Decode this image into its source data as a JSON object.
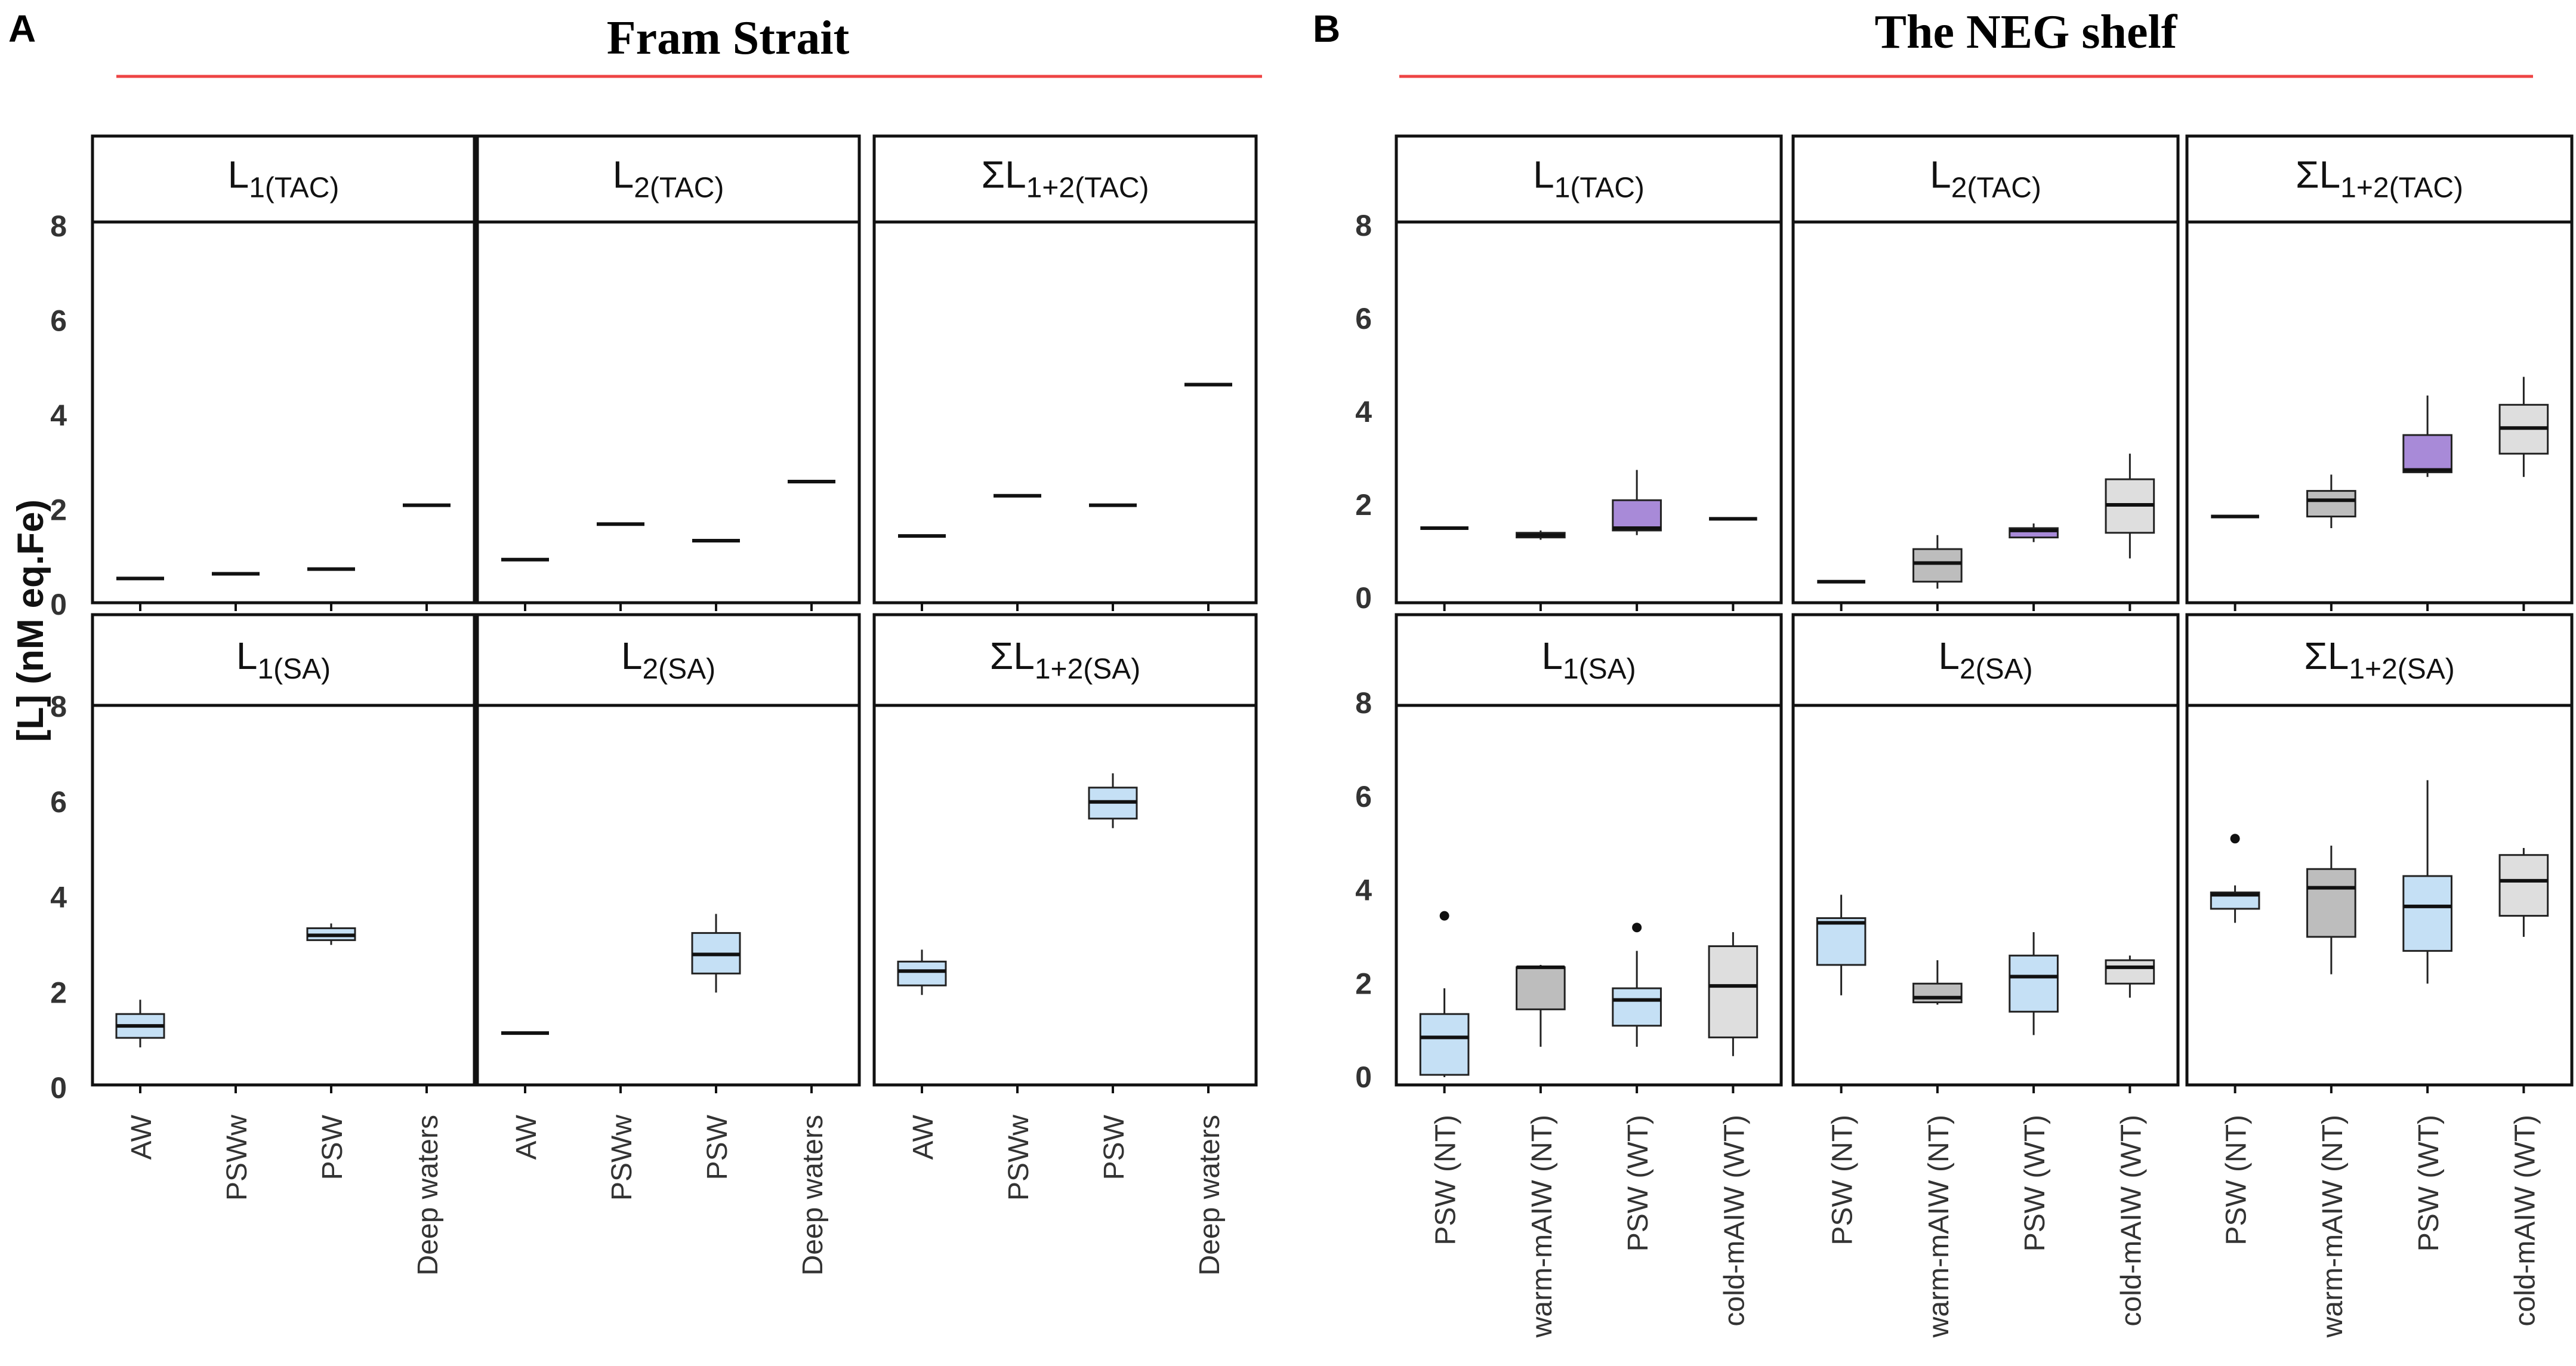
{
  "figure": {
    "y_axis_label": "[L] (nM eq.Fe)",
    "colors": {
      "title_underline": "#ee4444",
      "blue_box": "#c5e0f5",
      "purple_box": "#a88ad8",
      "gray_box": "#bdbdbd",
      "lightgray_box": "#dedede"
    }
  },
  "chart_data": [
    {
      "type": "boxplot",
      "panel_letter": "A",
      "title": "Fram Strait",
      "ylim": [
        0,
        8
      ],
      "yticks": [
        0,
        2,
        4,
        6,
        8
      ],
      "categories": [
        "AW",
        "PSWw",
        "PSW",
        "Deep waters"
      ],
      "facets": [
        {
          "label": "L1(TAC)",
          "main": "L",
          "sub": "1(TAC)",
          "row": 0,
          "col": 0,
          "boxes": [
            {
              "cat": 0,
              "median": 0.55,
              "color": "blue"
            },
            {
              "cat": 1,
              "median": 0.65,
              "color": "blue"
            },
            {
              "cat": 2,
              "median": 0.75,
              "color": "blue"
            },
            {
              "cat": 3,
              "median": 2.1,
              "color": "blue"
            }
          ]
        },
        {
          "label": "L2(TAC)",
          "main": "L",
          "sub": "2(TAC)",
          "row": 0,
          "col": 1,
          "boxes": [
            {
              "cat": 0,
              "median": 0.95,
              "color": "blue"
            },
            {
              "cat": 1,
              "median": 1.7,
              "color": "blue"
            },
            {
              "cat": 2,
              "median": 1.35,
              "color": "blue"
            },
            {
              "cat": 3,
              "median": 2.6,
              "color": "blue"
            }
          ]
        },
        {
          "label": "ΣL1+2(TAC)",
          "main": "ΣL",
          "sub": "1+2(TAC)",
          "row": 0,
          "col": 2,
          "boxes": [
            {
              "cat": 0,
              "median": 1.45,
              "color": "blue"
            },
            {
              "cat": 1,
              "median": 2.3,
              "color": "blue"
            },
            {
              "cat": 2,
              "median": 2.1,
              "color": "blue"
            },
            {
              "cat": 3,
              "median": 4.65,
              "color": "blue"
            }
          ]
        },
        {
          "label": "L1(SA)",
          "main": "L",
          "sub": "1(SA)",
          "row": 1,
          "col": 0,
          "boxes": [
            {
              "cat": 0,
              "min": 0.85,
              "q1": 1.05,
              "median": 1.3,
              "q3": 1.55,
              "max": 1.85,
              "color": "blue"
            },
            {
              "cat": 2,
              "min": 3.0,
              "q1": 3.1,
              "median": 3.2,
              "q3": 3.35,
              "max": 3.45,
              "color": "blue"
            }
          ]
        },
        {
          "label": "L2(SA)",
          "main": "L",
          "sub": "2(SA)",
          "row": 1,
          "col": 1,
          "boxes": [
            {
              "cat": 0,
              "median": 1.15,
              "color": "blue"
            },
            {
              "cat": 2,
              "min": 2.0,
              "q1": 2.4,
              "median": 2.8,
              "q3": 3.25,
              "max": 3.65,
              "color": "blue"
            }
          ]
        },
        {
          "label": "ΣL1+2(SA)",
          "main": "ΣL",
          "sub": "1+2(SA)",
          "row": 1,
          "col": 2,
          "boxes": [
            {
              "cat": 0,
              "min": 1.95,
              "q1": 2.15,
              "median": 2.45,
              "q3": 2.65,
              "max": 2.9,
              "color": "blue"
            },
            {
              "cat": 2,
              "min": 5.45,
              "q1": 5.65,
              "median": 6.0,
              "q3": 6.3,
              "max": 6.6,
              "color": "blue"
            }
          ]
        }
      ]
    },
    {
      "type": "boxplot",
      "panel_letter": "B",
      "title": "The NEG shelf",
      "ylim": [
        0,
        8
      ],
      "yticks": [
        0,
        2,
        4,
        6,
        8
      ],
      "categories": [
        "PSW (NT)",
        "warm-mAIW (NT)",
        "PSW (WT)",
        "cold-mAIW (WT)"
      ],
      "facets": [
        {
          "label": "L1(TAC)",
          "main": "L",
          "sub": "1(TAC)",
          "row": 0,
          "col": 0,
          "boxes": [
            {
              "cat": 0,
              "median": 1.5,
              "color": "blue"
            },
            {
              "cat": 1,
              "min": 1.25,
              "q1": 1.3,
              "median": 1.35,
              "q3": 1.4,
              "max": 1.45,
              "color": "gray"
            },
            {
              "cat": 2,
              "min": 1.35,
              "q1": 1.45,
              "median": 1.5,
              "q3": 2.1,
              "max": 2.75,
              "color": "purple"
            },
            {
              "cat": 3,
              "median": 1.7,
              "color": "lightgray"
            }
          ]
        },
        {
          "label": "L2(TAC)",
          "main": "L",
          "sub": "2(TAC)",
          "row": 0,
          "col": 1,
          "boxes": [
            {
              "cat": 0,
              "median": 0.35,
              "color": "blue"
            },
            {
              "cat": 1,
              "min": 0.2,
              "q1": 0.35,
              "median": 0.75,
              "q3": 1.05,
              "max": 1.35,
              "color": "gray"
            },
            {
              "cat": 2,
              "min": 1.2,
              "q1": 1.3,
              "median": 1.45,
              "q3": 1.5,
              "max": 1.6,
              "color": "purple"
            },
            {
              "cat": 3,
              "min": 0.85,
              "q1": 1.4,
              "median": 2.0,
              "q3": 2.55,
              "max": 3.1,
              "color": "lightgray"
            }
          ]
        },
        {
          "label": "ΣL1+2(TAC)",
          "main": "ΣL",
          "sub": "1+2(TAC)",
          "row": 0,
          "col": 2,
          "boxes": [
            {
              "cat": 0,
              "median": 1.75,
              "color": "blue"
            },
            {
              "cat": 1,
              "min": 1.5,
              "q1": 1.75,
              "median": 2.1,
              "q3": 2.3,
              "max": 2.65,
              "color": "gray"
            },
            {
              "cat": 2,
              "min": 2.6,
              "q1": 2.7,
              "median": 2.75,
              "q3": 3.5,
              "max": 4.35,
              "color": "purple"
            },
            {
              "cat": 3,
              "min": 2.6,
              "q1": 3.1,
              "median": 3.65,
              "q3": 4.15,
              "max": 4.75,
              "color": "lightgray"
            }
          ]
        },
        {
          "label": "L1(SA)",
          "main": "L",
          "sub": "1(SA)",
          "row": 1,
          "col": 0,
          "boxes": [
            {
              "cat": 0,
              "min": 0.0,
              "q1": 0.05,
              "median": 0.85,
              "q3": 1.35,
              "max": 1.9,
              "outliers": [
                3.45
              ],
              "color": "blue"
            },
            {
              "cat": 1,
              "min": 0.65,
              "q1": 1.45,
              "median": 2.35,
              "q3": 2.35,
              "max": 2.4,
              "color": "gray"
            },
            {
              "cat": 2,
              "min": 0.65,
              "q1": 1.1,
              "median": 1.65,
              "q3": 1.9,
              "max": 2.7,
              "outliers": [
                3.2
              ],
              "color": "blue"
            },
            {
              "cat": 3,
              "min": 0.45,
              "q1": 0.85,
              "median": 1.95,
              "q3": 2.8,
              "max": 3.1,
              "color": "lightgray"
            }
          ]
        },
        {
          "label": "L2(SA)",
          "main": "L",
          "sub": "2(SA)",
          "row": 1,
          "col": 1,
          "boxes": [
            {
              "cat": 0,
              "min": 1.75,
              "q1": 2.4,
              "median": 3.3,
              "q3": 3.4,
              "max": 3.9,
              "color": "blue"
            },
            {
              "cat": 1,
              "min": 1.55,
              "q1": 1.6,
              "median": 1.7,
              "q3": 2.0,
              "max": 2.5,
              "color": "gray"
            },
            {
              "cat": 2,
              "min": 0.9,
              "q1": 1.4,
              "median": 2.15,
              "q3": 2.6,
              "max": 3.1,
              "color": "blue"
            },
            {
              "cat": 3,
              "min": 1.7,
              "q1": 2.0,
              "median": 2.35,
              "q3": 2.5,
              "max": 2.6,
              "color": "lightgray"
            }
          ]
        },
        {
          "label": "ΣL1+2(SA)",
          "main": "ΣL",
          "sub": "1+2(SA)",
          "row": 1,
          "col": 2,
          "boxes": [
            {
              "cat": 0,
              "min": 3.3,
              "q1": 3.6,
              "median": 3.9,
              "q3": 3.95,
              "max": 4.1,
              "outliers": [
                5.1
              ],
              "color": "blue"
            },
            {
              "cat": 1,
              "min": 2.2,
              "q1": 3.0,
              "median": 4.05,
              "q3": 4.45,
              "max": 4.95,
              "color": "gray"
            },
            {
              "cat": 2,
              "min": 2.0,
              "q1": 2.7,
              "median": 3.65,
              "q3": 4.3,
              "max": 6.35,
              "color": "blue"
            },
            {
              "cat": 3,
              "min": 3.0,
              "q1": 3.45,
              "median": 4.2,
              "q3": 4.75,
              "max": 4.9,
              "color": "lightgray"
            }
          ]
        }
      ]
    }
  ]
}
